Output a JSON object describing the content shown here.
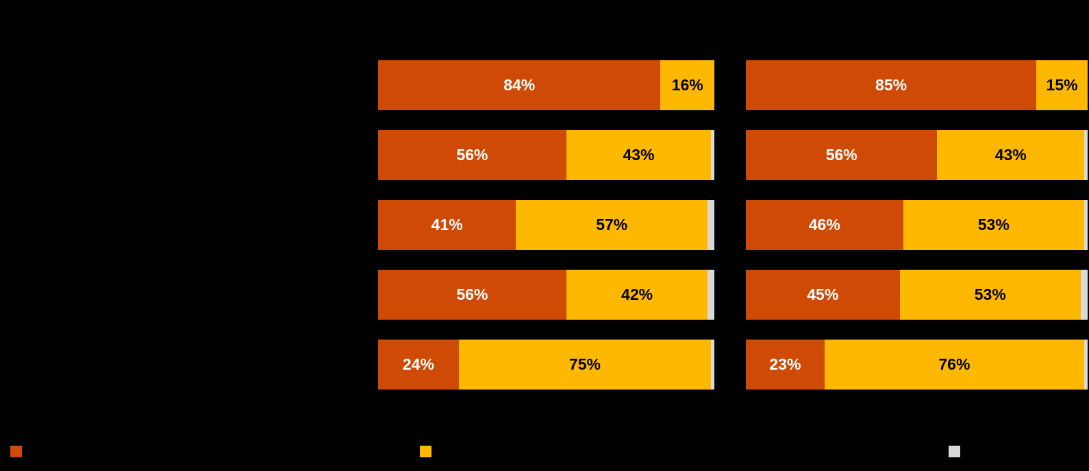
{
  "page": {
    "background_color": "#000000"
  },
  "colors": {
    "series1": "#CE4A05",
    "series2": "#FFB800",
    "remainder": "#D9D9D9",
    "label_on_series1": "#FFFFFF",
    "label_on_series2": "#000000"
  },
  "chart_data": {
    "type": "bar",
    "subtype": "horizontal-stacked-100pct",
    "unit": "%",
    "axis_range": [
      0,
      100
    ],
    "grid": false,
    "legend_position": "bottom",
    "series": [
      {
        "key": "series1",
        "color": "#CE4A05"
      },
      {
        "key": "series2",
        "color": "#FFB800"
      },
      {
        "key": "remainder",
        "color": "#D9D9D9"
      }
    ],
    "panels": [
      {
        "id": "left-panel",
        "rows": [
          {
            "values": [
              84,
              16,
              0
            ],
            "labels": [
              "84%",
              "16%",
              ""
            ]
          },
          {
            "values": [
              56,
              43,
              1
            ],
            "labels": [
              "56%",
              "43%",
              ""
            ]
          },
          {
            "values": [
              41,
              57,
              2
            ],
            "labels": [
              "41%",
              "57%",
              ""
            ]
          },
          {
            "values": [
              56,
              42,
              2
            ],
            "labels": [
              "56%",
              "42%",
              ""
            ]
          },
          {
            "values": [
              24,
              75,
              1
            ],
            "labels": [
              "24%",
              "75%",
              ""
            ]
          }
        ]
      },
      {
        "id": "right-panel",
        "rows": [
          {
            "values": [
              85,
              15,
              0
            ],
            "labels": [
              "85%",
              "15%",
              ""
            ]
          },
          {
            "values": [
              56,
              43,
              1
            ],
            "labels": [
              "56%",
              "43%",
              ""
            ]
          },
          {
            "values": [
              46,
              53,
              1
            ],
            "labels": [
              "46%",
              "53%",
              ""
            ]
          },
          {
            "values": [
              45,
              53,
              2
            ],
            "labels": [
              "45%",
              "53%",
              ""
            ]
          },
          {
            "values": [
              23,
              76,
              1
            ],
            "labels": [
              "23%",
              "76%",
              ""
            ]
          }
        ]
      }
    ],
    "legend": {
      "swatches": [
        {
          "key": "series1",
          "color": "#CE4A05"
        },
        {
          "key": "series2",
          "color": "#FFB800"
        },
        {
          "key": "remainder",
          "color": "#D9D9D9"
        }
      ]
    }
  }
}
